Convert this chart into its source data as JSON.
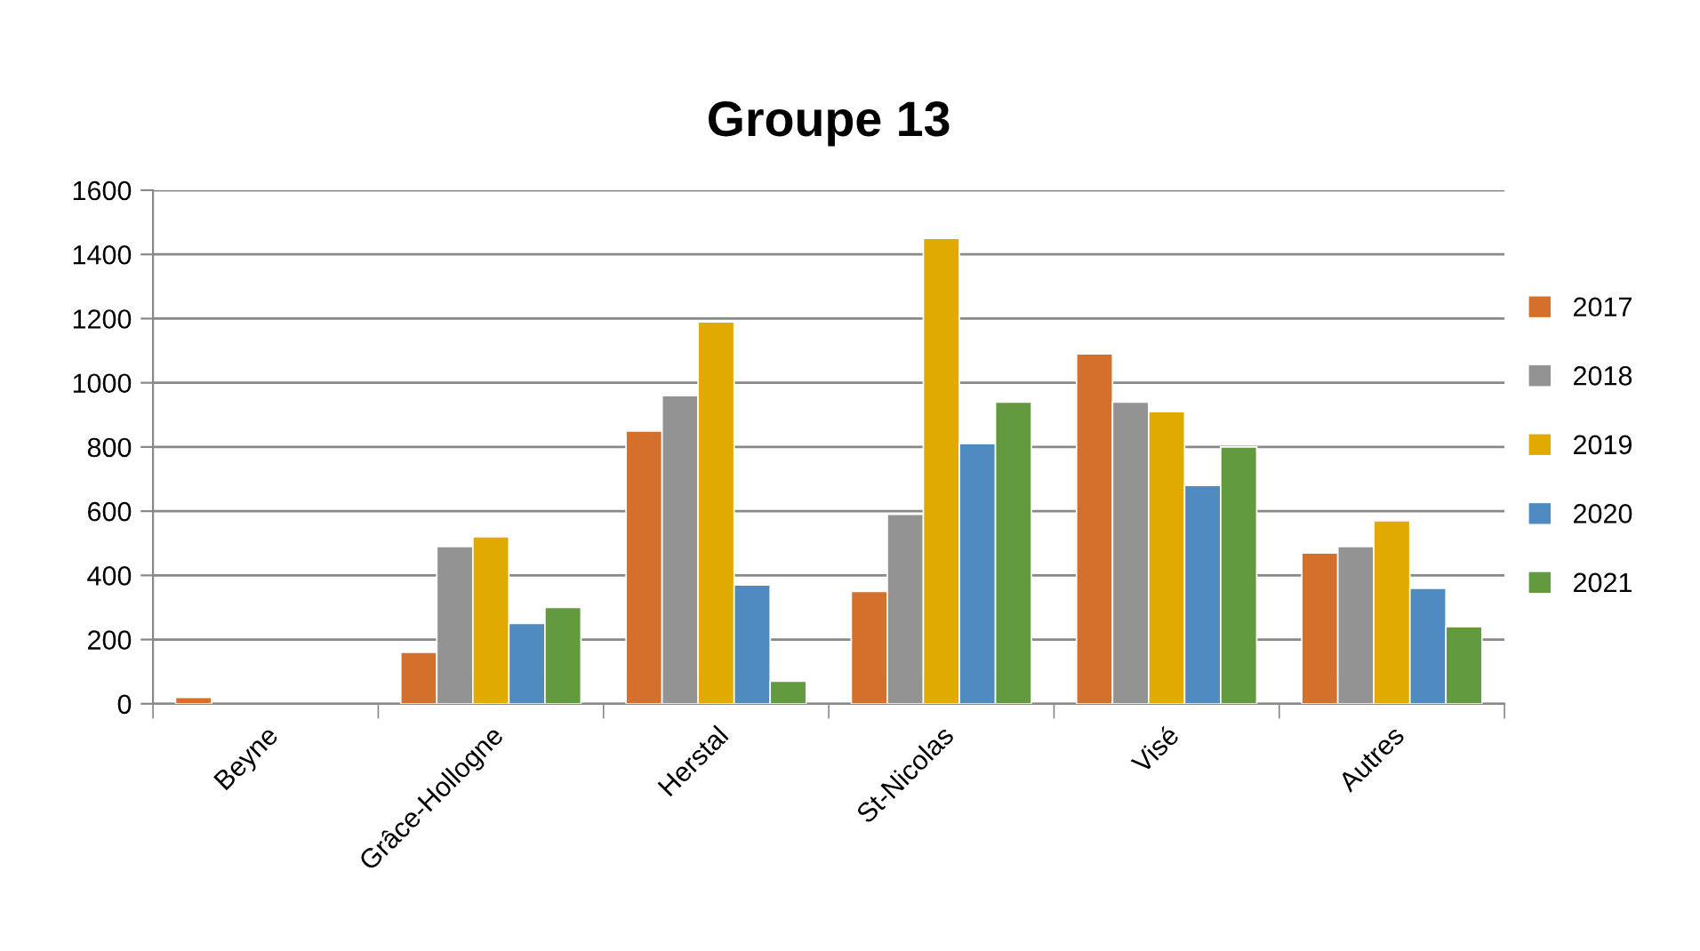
{
  "chart_data": {
    "type": "bar",
    "title": "Groupe 13",
    "categories": [
      "Beyne",
      "Grâce-Hollogne",
      "Herstal",
      "St-Nicolas",
      "Visé",
      "Autres"
    ],
    "series": [
      {
        "name": "2017",
        "color": "#d46f2c",
        "values": [
          20,
          160,
          850,
          350,
          1090,
          470
        ]
      },
      {
        "name": "2018",
        "color": "#939393",
        "values": [
          null,
          490,
          960,
          590,
          940,
          490
        ]
      },
      {
        "name": "2019",
        "color": "#e1aa00",
        "values": [
          null,
          520,
          1190,
          1450,
          910,
          570
        ]
      },
      {
        "name": "2020",
        "color": "#4f8bc0",
        "values": [
          null,
          250,
          370,
          810,
          680,
          360
        ]
      },
      {
        "name": "2021",
        "color": "#649a3f",
        "values": [
          null,
          300,
          70,
          940,
          800,
          240
        ]
      }
    ],
    "ylim": [
      0,
      1600
    ],
    "yticks": [
      0,
      200,
      400,
      600,
      800,
      1000,
      1200,
      1400,
      1600
    ],
    "grid": "y",
    "legend": "right"
  }
}
